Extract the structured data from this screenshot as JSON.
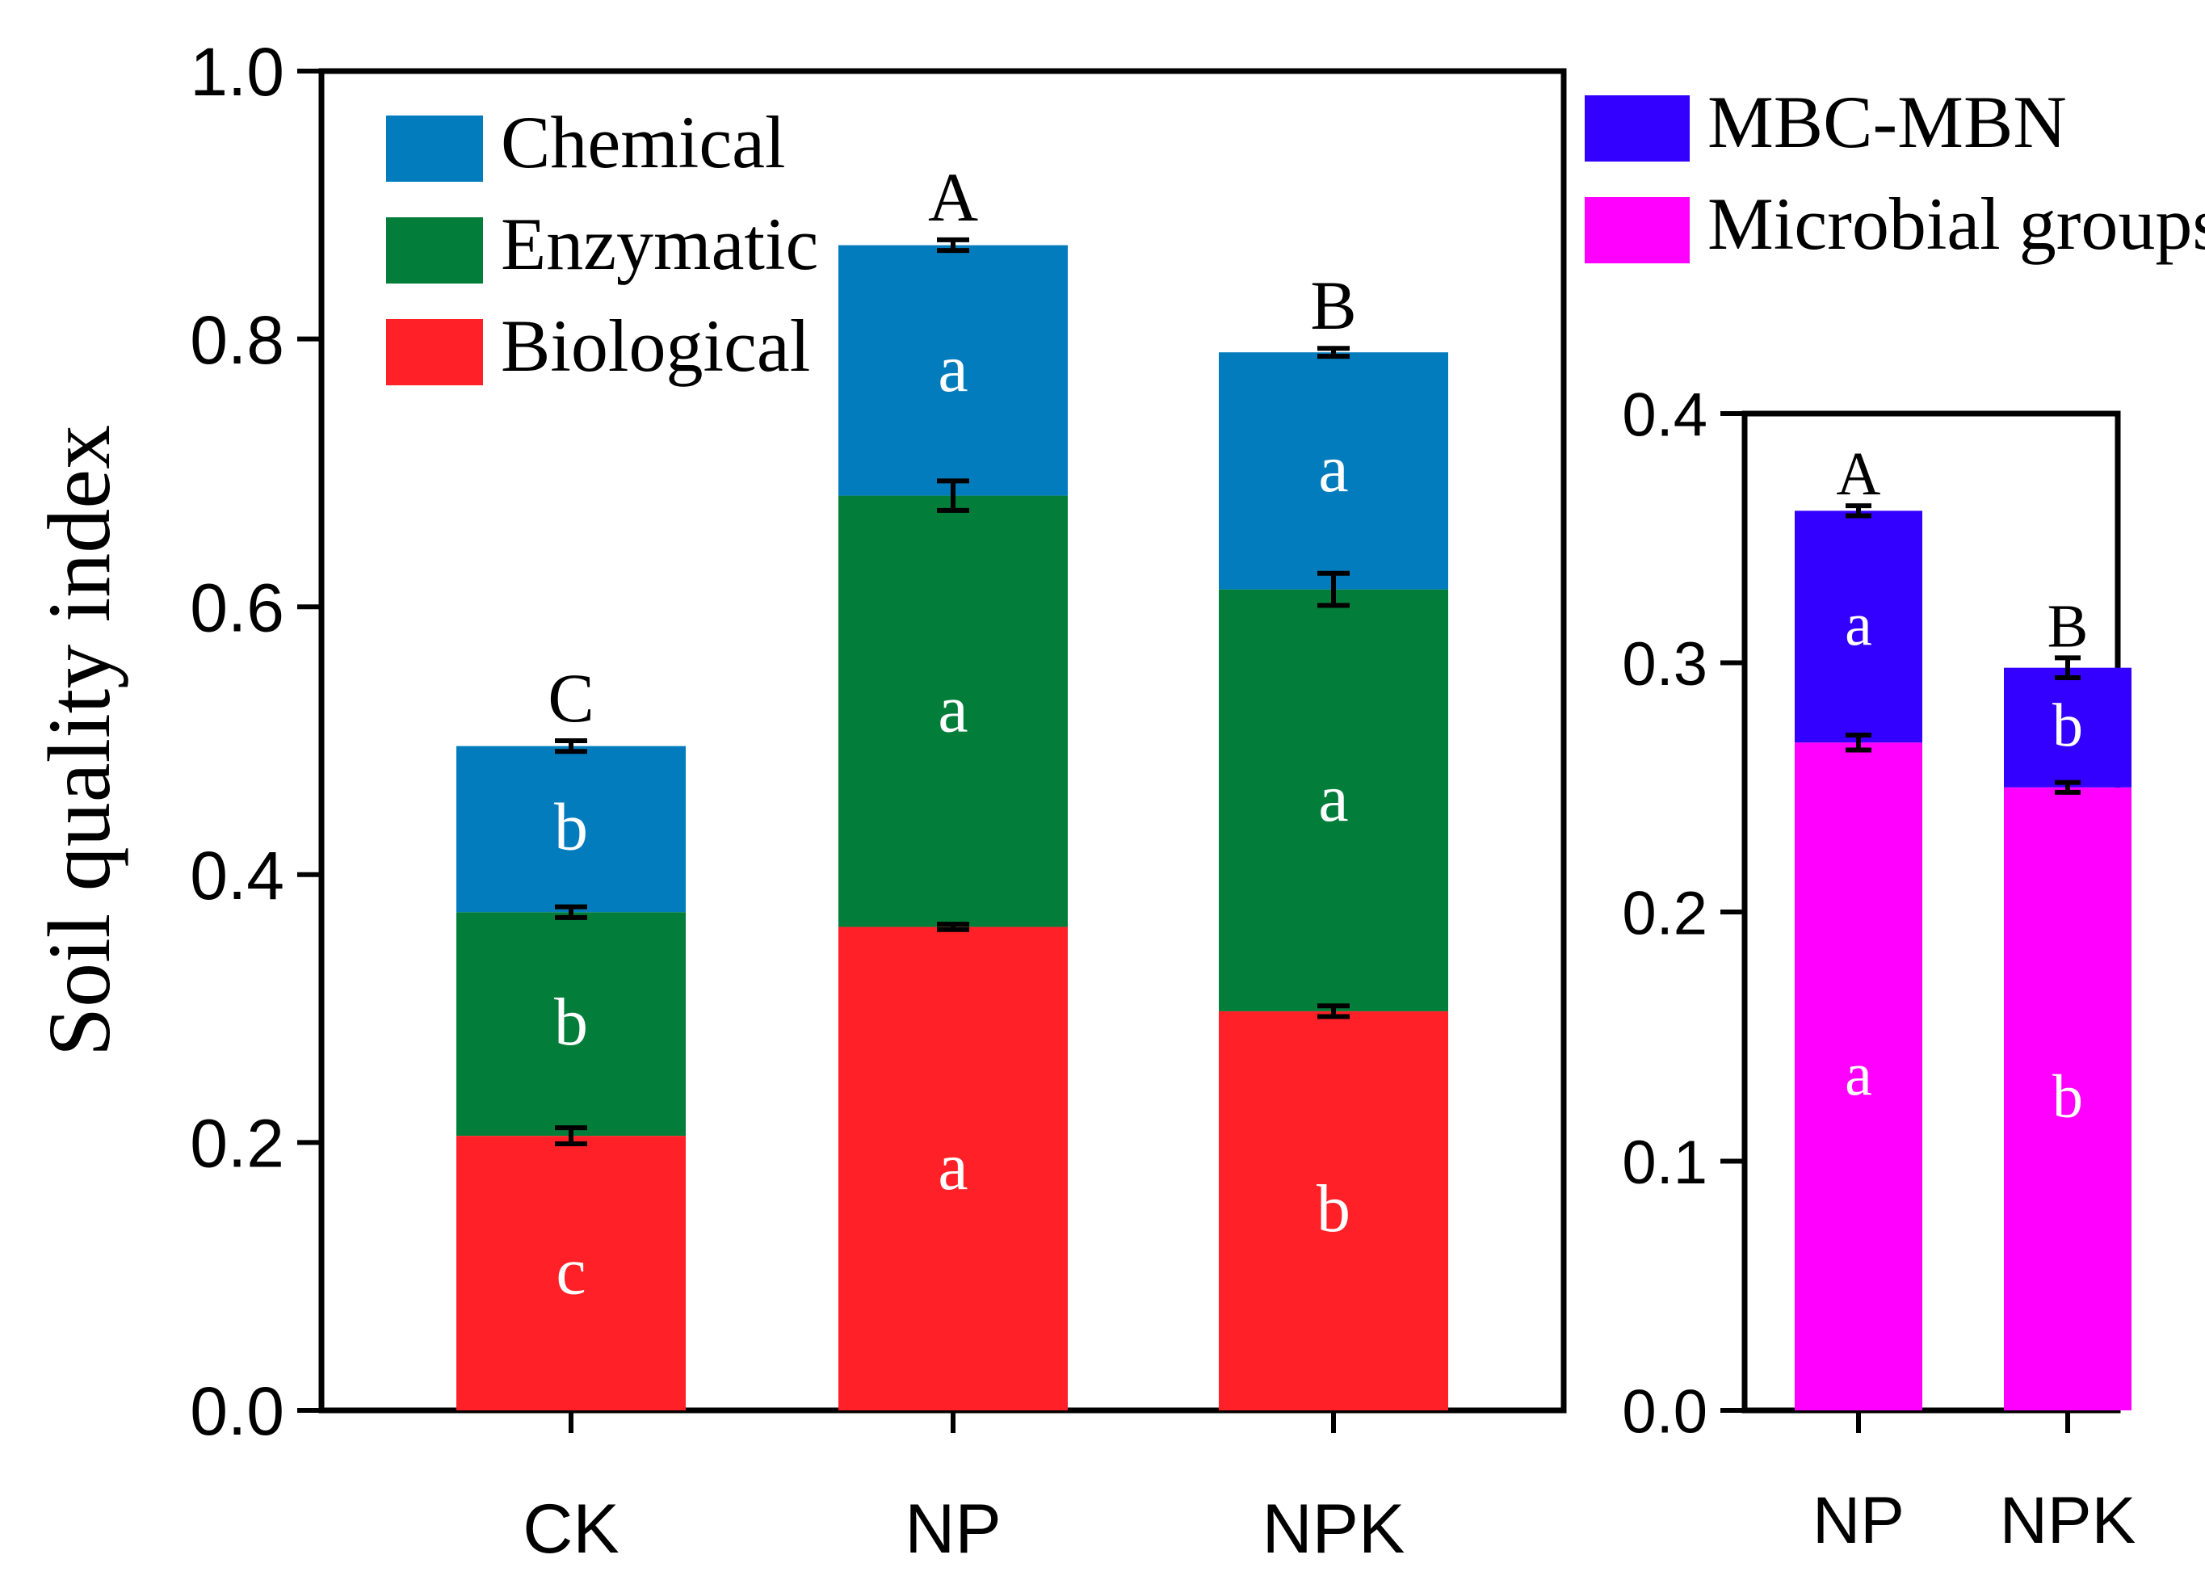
{
  "chart_data": [
    {
      "type": "bar",
      "stacked": true,
      "title": "",
      "xlabel": "",
      "ylabel": "Soil quality index",
      "ylim": [
        0,
        1.0
      ],
      "yticks": [
        "0.0",
        "0.2",
        "0.4",
        "0.6",
        "0.8",
        "1.0"
      ],
      "categories": [
        "CK",
        "NP",
        "NPK"
      ],
      "legend_position": "top-left",
      "series": [
        {
          "name": "Biological",
          "color": "#ff2028",
          "values": [
            0.205,
            0.361,
            0.298
          ],
          "errors": [
            0.006,
            0.002,
            0.004
          ],
          "letters": [
            "c",
            "a",
            "b"
          ]
        },
        {
          "name": "Enzymatic",
          "color": "#037e3a",
          "values": [
            0.167,
            0.322,
            0.315
          ],
          "errors": [
            0.004,
            0.011,
            0.012
          ],
          "letters": [
            "b",
            "a",
            "a"
          ]
        },
        {
          "name": "Chemical",
          "color": "#027cbc",
          "values": [
            0.124,
            0.187,
            0.177
          ],
          "errors": [
            0.004,
            0.004,
            0.003
          ],
          "letters": [
            "b",
            "a",
            "a"
          ]
        }
      ],
      "total_letters": [
        "C",
        "A",
        "B"
      ],
      "legend_order": [
        "Chemical",
        "Enzymatic",
        "Biological"
      ]
    },
    {
      "type": "bar",
      "stacked": true,
      "title": "",
      "xlabel": "",
      "ylabel": "",
      "ylim": [
        0,
        0.4
      ],
      "yticks": [
        "0.0",
        "0.1",
        "0.2",
        "0.3",
        "0.4"
      ],
      "categories": [
        "NP",
        "NPK"
      ],
      "legend_position": "top",
      "series": [
        {
          "name": "Microbial groups",
          "color": "#ff00ff",
          "values": [
            0.268,
            0.25
          ],
          "errors": [
            0.003,
            0.002
          ],
          "letters": [
            "a",
            "b"
          ]
        },
        {
          "name": "MBC-MBN",
          "color": "#3300ff",
          "values": [
            0.093,
            0.048
          ],
          "errors": [
            0.002,
            0.004
          ],
          "letters": [
            "a",
            "b"
          ]
        }
      ],
      "total_letters": [
        "A",
        "B"
      ],
      "legend_order": [
        "MBC-MBN",
        "Microbial groups"
      ]
    }
  ]
}
